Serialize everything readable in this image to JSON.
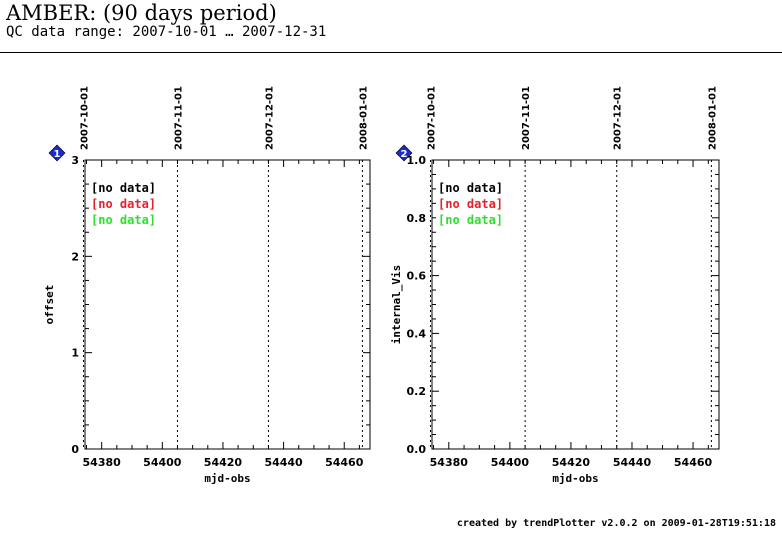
{
  "header": {
    "title": "AMBER: (90 days period)",
    "subtitle": "QC data range: 2007-10-01 … 2007-12-31"
  },
  "footer": {
    "text": "created by trendPlotter v2.0.2 on 2009-01-28T19:51:18"
  },
  "colors": {
    "axis": "#000000",
    "marker": "#1a2ccf",
    "series": [
      "#000000",
      "#e8202a",
      "#2ee02e"
    ]
  },
  "chart_data": [
    {
      "type": "scatter",
      "badge": "1",
      "xlabel": "mjd-obs",
      "ylabel": "offset",
      "xlim": [
        54374.5,
        54468.5
      ],
      "ylim": [
        0,
        3
      ],
      "x_ticks": [
        54380,
        54400,
        54420,
        54440,
        54460
      ],
      "x_minor_step": 5,
      "y_ticks": [
        0,
        1,
        2,
        3
      ],
      "y_minor_step": 0.25,
      "date_markers": [
        {
          "label": "2007-10-01",
          "mjd": 54374
        },
        {
          "label": "2007-11-01",
          "mjd": 54405
        },
        {
          "label": "2007-12-01",
          "mjd": 54435
        },
        {
          "label": "2008-01-01",
          "mjd": 54466
        }
      ],
      "series": [
        {
          "label": "[no data]",
          "values": []
        },
        {
          "label": "[no data]",
          "values": []
        },
        {
          "label": "[no data]",
          "values": []
        }
      ]
    },
    {
      "type": "scatter",
      "badge": "2",
      "xlabel": "mjd-obs",
      "ylabel": "internal_Vis",
      "xlim": [
        54374.5,
        54468.5
      ],
      "ylim": [
        0,
        1
      ],
      "x_ticks": [
        54380,
        54400,
        54420,
        54440,
        54460
      ],
      "x_minor_step": 5,
      "y_ticks": [
        0,
        0.2,
        0.4,
        0.6,
        0.8,
        1
      ],
      "y_minor_step": 0.05,
      "date_markers": [
        {
          "label": "2007-10-01",
          "mjd": 54374
        },
        {
          "label": "2007-11-01",
          "mjd": 54405
        },
        {
          "label": "2007-12-01",
          "mjd": 54435
        },
        {
          "label": "2008-01-01",
          "mjd": 54466
        }
      ],
      "series": [
        {
          "label": "[no data]",
          "values": []
        },
        {
          "label": "[no data]",
          "values": []
        },
        {
          "label": "[no data]",
          "values": []
        }
      ]
    }
  ]
}
